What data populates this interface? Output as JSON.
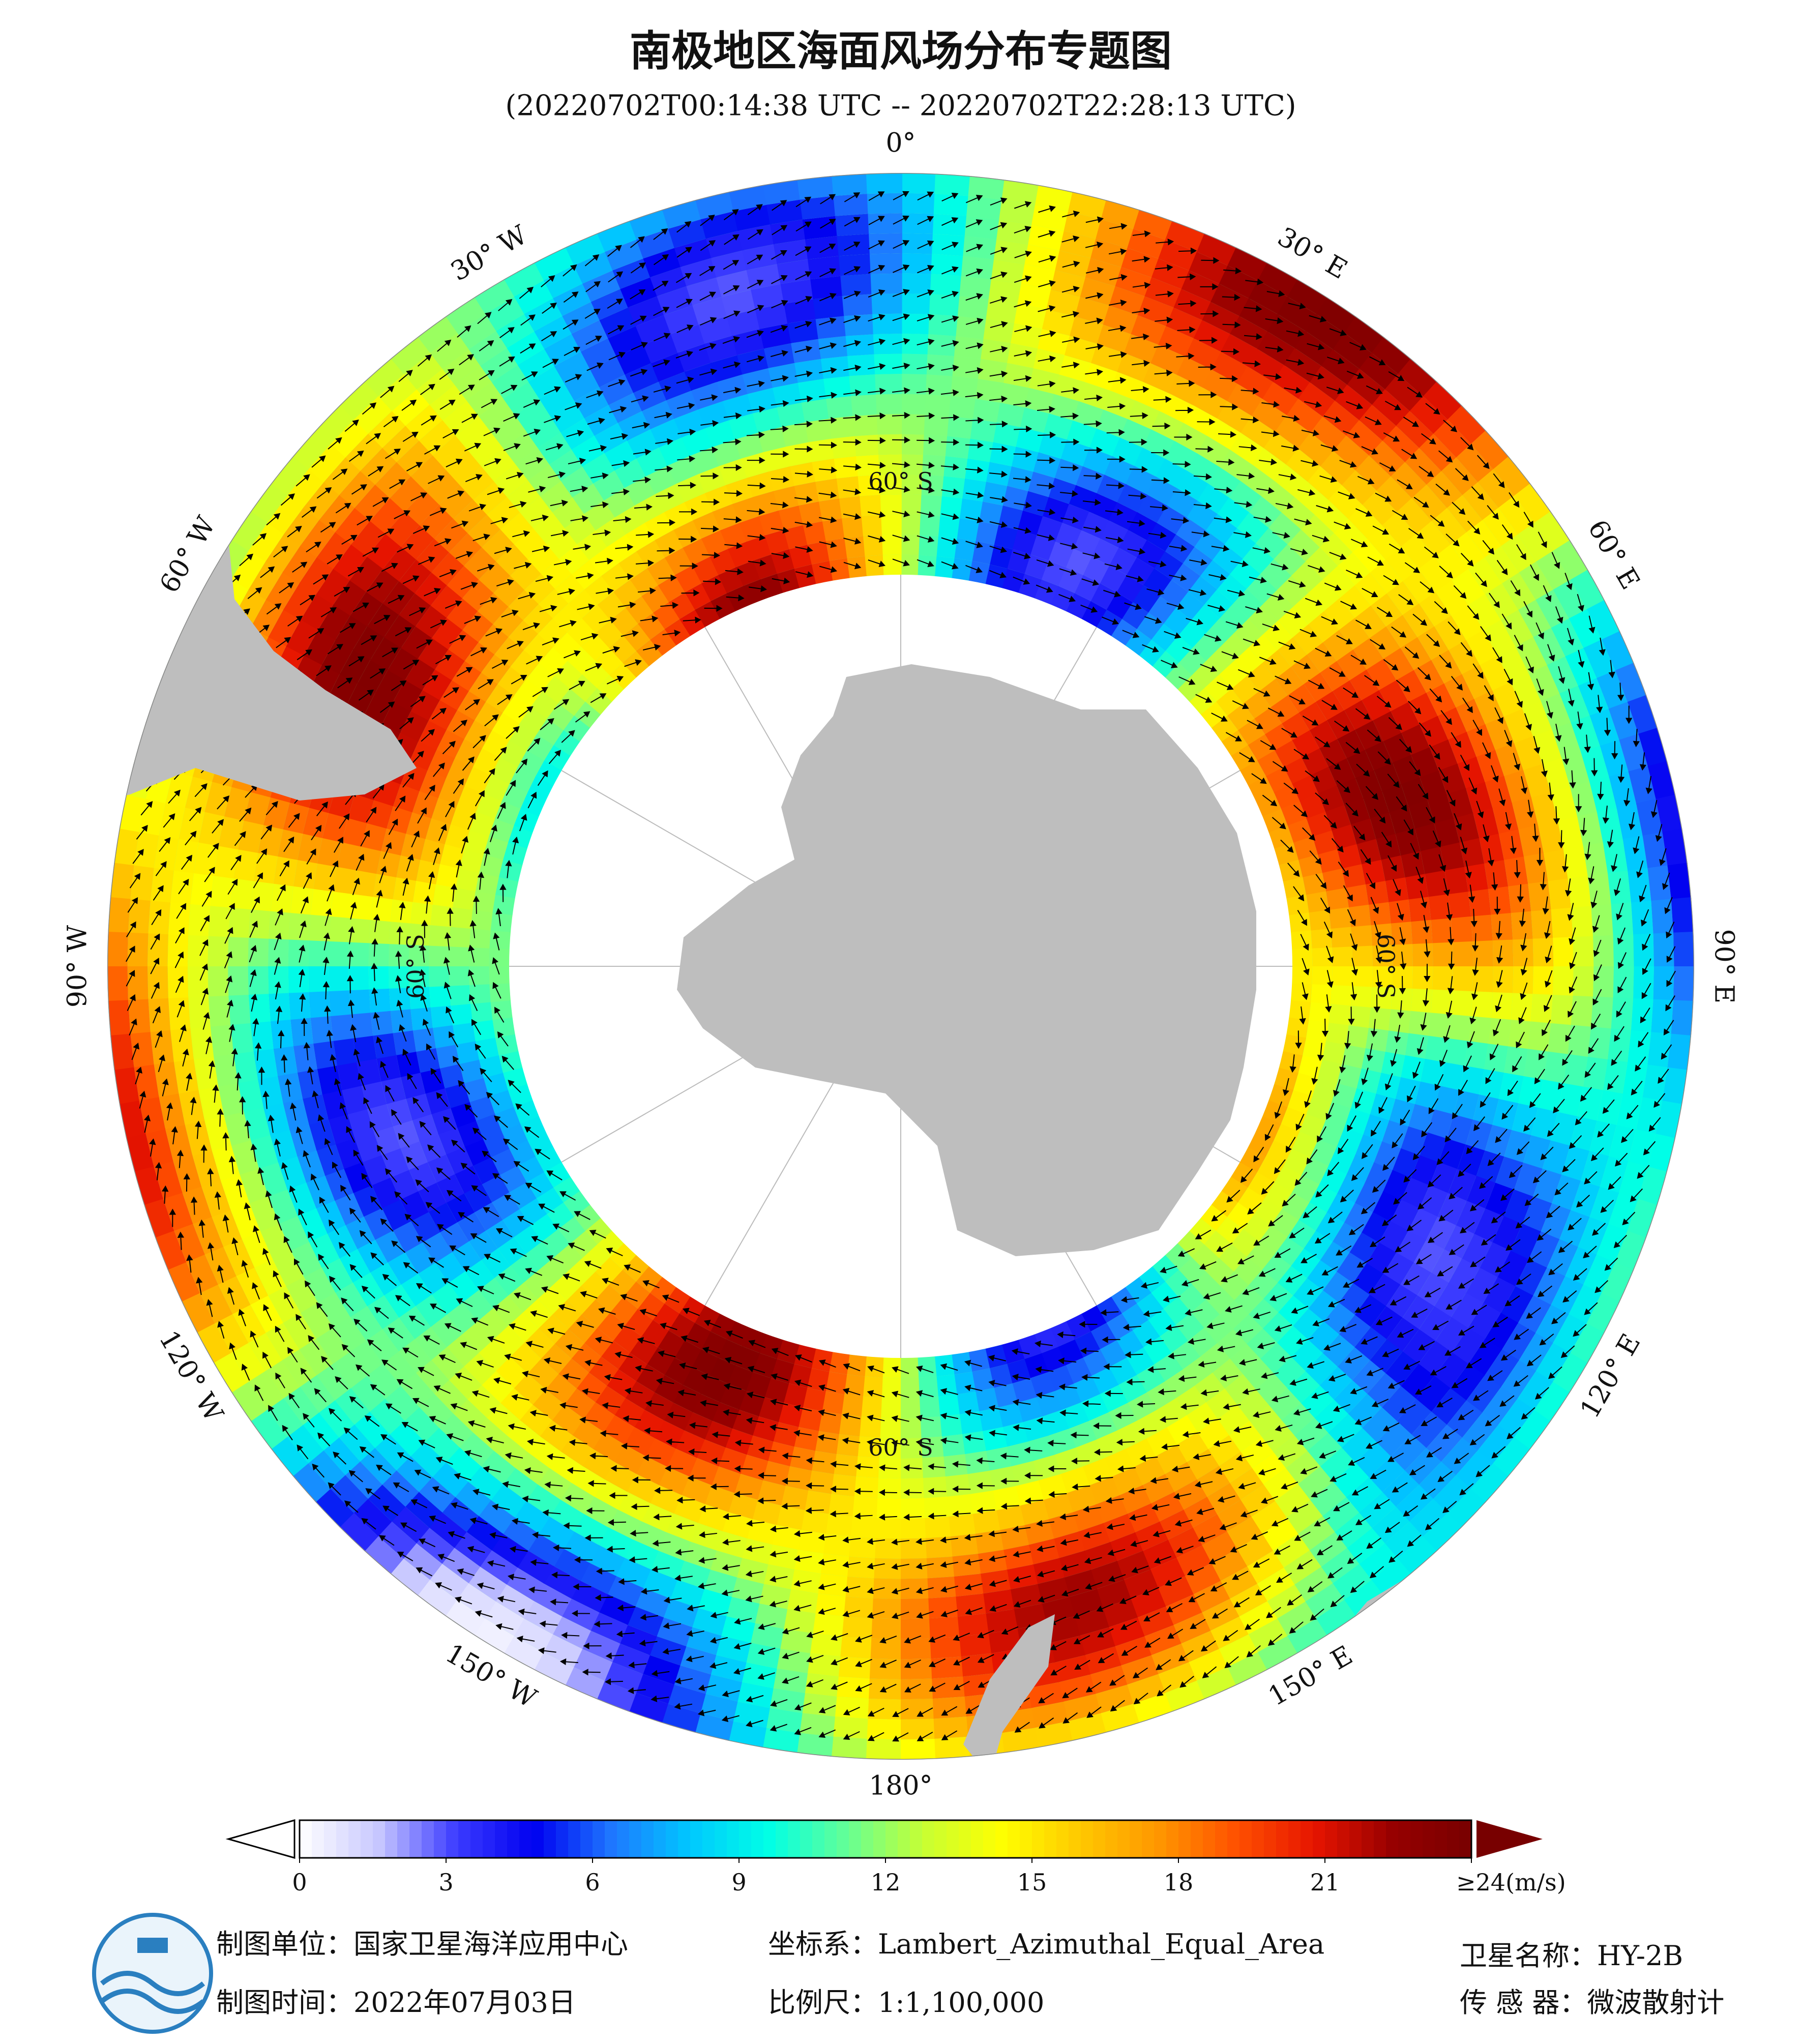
{
  "header": {
    "title": "南极地区海面风场分布专题图",
    "subtitle": "(20220702T00:14:38 UTC -- 20220702T22:28:13 UTC)"
  },
  "map": {
    "longitude_labels": [
      "0°",
      "30° E",
      "60° E",
      "90° E",
      "120° E",
      "150° E",
      "180°",
      "150° W",
      "120° W",
      "90° W",
      "60° W",
      "30° W"
    ],
    "latitude_labels": [
      "60° S",
      "60° S",
      "60° S",
      "60° S"
    ]
  },
  "colorbar": {
    "range": [
      0,
      24
    ],
    "ticks": [
      0,
      3,
      6,
      9,
      12,
      15,
      18,
      21,
      {
        "value": 24,
        "label": "≥24(m/s)"
      }
    ],
    "colors": [
      "#ffffff",
      "#c8c8ff",
      "#3c3cff",
      "#0000f0",
      "#1e78ff",
      "#00c8ff",
      "#00ffe6",
      "#64ff96",
      "#c8ff32",
      "#ffff00",
      "#ffc800",
      "#ff9600",
      "#ff5000",
      "#e61400",
      "#960000",
      "#780000"
    ]
  },
  "footer": {
    "left": [
      "制图单位：国家卫星海洋应用中心",
      "制图时间：2022年07月03日"
    ],
    "middle": [
      "坐标系：Lambert_Azimuthal_Equal_Area",
      "比例尺：1:1,100,000"
    ],
    "right": [
      "卫星名称：HY-2B",
      "传 感 器：微波散射计"
    ]
  }
}
